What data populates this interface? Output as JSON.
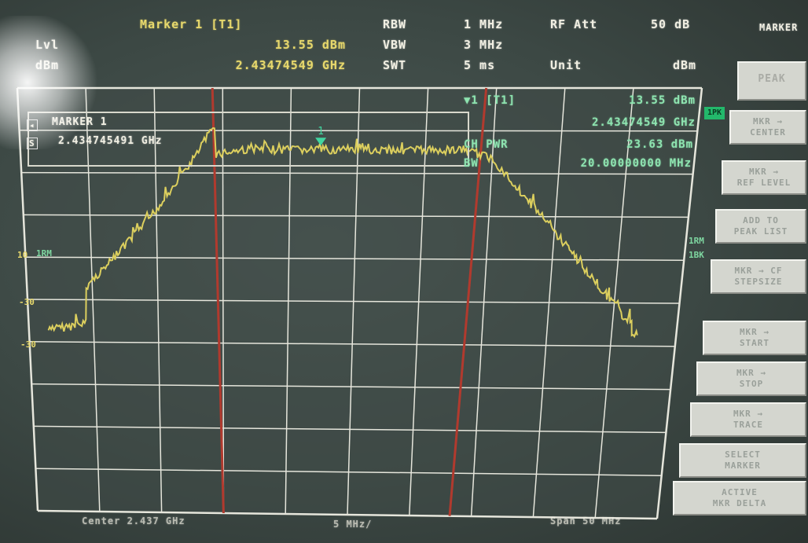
{
  "header": {
    "marker_title": "Marker 1 [T1]",
    "lvl_label": "Lvl",
    "unit_label_left": "dBm",
    "marker_level": "13.55 dBm",
    "marker_freq": "2.43474549 GHz",
    "rbw_label": "RBW",
    "vbw_label": "VBW",
    "swt_label": "SWT",
    "rbw_value": "1 MHz",
    "vbw_value": "3 MHz",
    "swt_value": "5 ms",
    "rf_att_label": "RF Att",
    "rf_att_value": "50 dB",
    "unit_label": "Unit",
    "unit_value": "dBm",
    "menu_title": "MARKER"
  },
  "marker_box": {
    "title": "MARKER 1",
    "freq": "2.434745491 GHz"
  },
  "readout": {
    "marker_label": "▼1 [T1]",
    "marker_level": "13.55 dBm",
    "marker_freq": "2.43474549 GHz",
    "ch_pwr_label": "CH PWR",
    "ch_pwr_value": "23.63 dBm",
    "bw_label": "BW",
    "bw_value": "20.00000000 MHz"
  },
  "graph": {
    "trace_color": "#dccf5e",
    "marker_color": "#41d6a0",
    "channel_line_color": "#b13a2e",
    "grid_color": "#e6e6dc",
    "ref_label": "1RM",
    "left_labels": [
      "10",
      "-30",
      "-30"
    ],
    "marker_number": "1",
    "trace_badge": "1PK",
    "right_badges": [
      "1RM",
      "1BK"
    ]
  },
  "footer": {
    "center": "Center 2.437 GHz",
    "span_div": "5 MHz/",
    "span": "Span 50 MHz"
  },
  "softkeys": [
    {
      "label": "PEAK",
      "highlight": true
    },
    {
      "label": "MKR →\nCENTER"
    },
    {
      "label": "MKR →\nREF LEVEL"
    },
    {
      "label": "ADD TO\nPEAK LIST"
    },
    {
      "label": "MKR → CF\nSTEPSIZE"
    },
    {
      "label": "MKR →\nSTART"
    },
    {
      "label": "MKR →\nSTOP"
    },
    {
      "label": "MKR →\nTRACE"
    },
    {
      "label": "SELECT\nMARKER"
    },
    {
      "label": "ACTIVE\nMKR DELTA"
    }
  ]
}
